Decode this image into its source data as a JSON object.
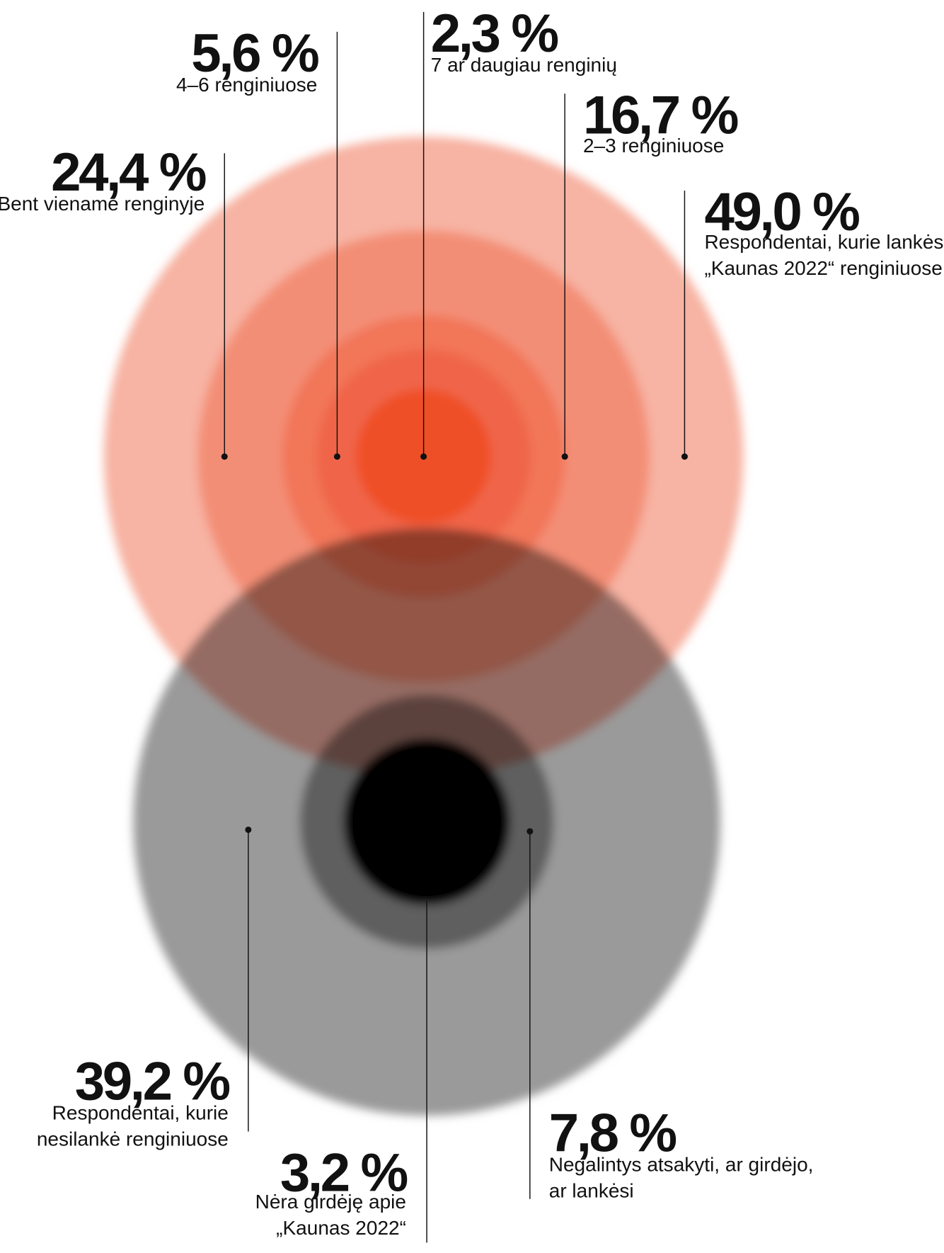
{
  "items": [
    {
      "value": "24,4 %",
      "lines": [
        "Bent viename renginyje"
      ]
    },
    {
      "value": "5,6 %",
      "lines": [
        "4–6 renginiuose"
      ]
    },
    {
      "value": "2,3 %",
      "lines": [
        "7 ar daugiau renginių"
      ]
    },
    {
      "value": "16,7 %",
      "lines": [
        "2–3 renginiuose"
      ]
    },
    {
      "value": "49,0 %",
      "lines": [
        "Respondentai, kurie lankėsi",
        "„Kaunas 2022“ renginiuose"
      ]
    },
    {
      "value": "39,2 %",
      "lines": [
        "Respondentai, kurie",
        "nesilankė renginiuose"
      ]
    },
    {
      "value": "3,2 %",
      "lines": [
        "Nėra girdėję apie",
        "„Kaunas 2022“"
      ]
    },
    {
      "value": "7,8 %",
      "lines": [
        "Negalintys atsakyti, ar girdėjo,",
        "ar lankėsi"
      ]
    }
  ]
}
